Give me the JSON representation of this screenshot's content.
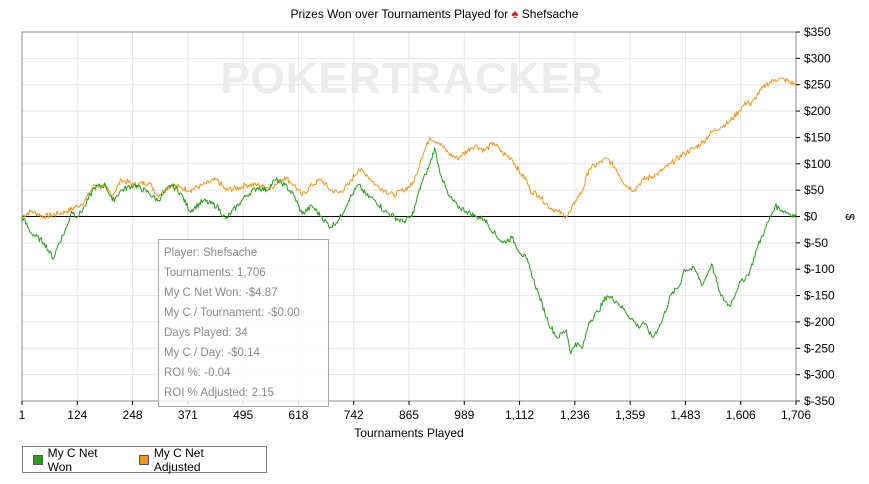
{
  "title": {
    "text": "Prizes Won over Tournaments Played for",
    "player": "Shefsache",
    "icon": "poker-spade-icon"
  },
  "watermark": "POKERTRACKER",
  "colors": {
    "net_won": "#2a9d1f",
    "net_adjusted": "#f0961e",
    "zero_line": "#000000",
    "grid": "#e6e6e6"
  },
  "chart_data": {
    "type": "line",
    "title": "Prizes Won over Tournaments Played for Shefsache",
    "xlabel": "Tournaments Played",
    "ylabel": "$",
    "x_tick_labels": [
      "1",
      "124",
      "248",
      "371",
      "495",
      "618",
      "742",
      "865",
      "989",
      "1,112",
      "1,236",
      "1,359",
      "1,483",
      "1,606",
      "1,706"
    ],
    "y_tick_labels": [
      "$350",
      "$300",
      "$250",
      "$200",
      "$150",
      "$100",
      "$50",
      "$0",
      "$-50",
      "$-100",
      "$-150",
      "$-200",
      "$-250",
      "$-300",
      "$-350"
    ],
    "xlim": [
      1,
      1706
    ],
    "ylim": [
      -350,
      350
    ],
    "grid": true,
    "legend_position": "bottom-left",
    "series": [
      {
        "name": "My C Net Won",
        "color": "#2a9d1f",
        "x": [
          1,
          20,
          50,
          70,
          80,
          100,
          110,
          124,
          140,
          160,
          185,
          200,
          220,
          248,
          280,
          300,
          330,
          350,
          371,
          400,
          430,
          450,
          480,
          495,
          520,
          540,
          560,
          580,
          600,
          618,
          640,
          660,
          680,
          700,
          720,
          742,
          760,
          780,
          800,
          820,
          840,
          860,
          870,
          880,
          890,
          900,
          910,
          920,
          940,
          960,
          980,
          1000,
          1020,
          1040,
          1060,
          1080,
          1100,
          1112,
          1120,
          1140,
          1160,
          1180,
          1200,
          1210,
          1220,
          1236,
          1250,
          1270,
          1290,
          1310,
          1330,
          1350,
          1359,
          1370,
          1390,
          1410,
          1430,
          1450,
          1460,
          1483,
          1500,
          1520,
          1540,
          1560,
          1580,
          1600,
          1606,
          1620,
          1640,
          1660,
          1680,
          1706
        ],
        "y": [
          0,
          -30,
          -50,
          -80,
          -55,
          -20,
          10,
          0,
          20,
          55,
          60,
          30,
          50,
          60,
          45,
          30,
          60,
          45,
          10,
          30,
          20,
          -5,
          25,
          40,
          55,
          50,
          70,
          60,
          40,
          5,
          20,
          0,
          -20,
          -5,
          30,
          60,
          40,
          30,
          10,
          0,
          -10,
          0,
          30,
          60,
          80,
          100,
          130,
          90,
          40,
          20,
          10,
          0,
          -5,
          -30,
          -50,
          -40,
          -70,
          -80,
          -100,
          -150,
          -200,
          -230,
          -215,
          -260,
          -240,
          -250,
          -200,
          -180,
          -150,
          -160,
          -180,
          -200,
          -210,
          -200,
          -230,
          -200,
          -150,
          -130,
          -100,
          -100,
          -130,
          -90,
          -150,
          -170,
          -130,
          -110,
          -100,
          -60,
          -20,
          20,
          10,
          0
        ]
      },
      {
        "name": "My C Net Adjusted",
        "color": "#f0961e",
        "x": [
          1,
          20,
          50,
          80,
          100,
          124,
          140,
          160,
          185,
          200,
          220,
          248,
          280,
          300,
          330,
          350,
          371,
          400,
          430,
          450,
          480,
          495,
          520,
          540,
          560,
          580,
          600,
          618,
          640,
          660,
          680,
          700,
          720,
          742,
          760,
          780,
          800,
          820,
          840,
          860,
          870,
          880,
          900,
          920,
          940,
          960,
          989,
          1000,
          1020,
          1040,
          1060,
          1080,
          1100,
          1112,
          1120,
          1140,
          1160,
          1180,
          1200,
          1210,
          1220,
          1236,
          1250,
          1270,
          1290,
          1310,
          1330,
          1350,
          1359,
          1370,
          1400,
          1430,
          1460,
          1483,
          1500,
          1520,
          1540,
          1560,
          1580,
          1600,
          1606,
          1620,
          1640,
          1660,
          1680,
          1706
        ],
        "y": [
          0,
          10,
          0,
          5,
          10,
          20,
          30,
          60,
          55,
          40,
          70,
          60,
          65,
          40,
          60,
          55,
          50,
          60,
          70,
          50,
          55,
          60,
          60,
          55,
          60,
          75,
          60,
          40,
          60,
          70,
          50,
          45,
          60,
          90,
          80,
          60,
          50,
          40,
          50,
          60,
          80,
          110,
          150,
          140,
          120,
          110,
          130,
          135,
          125,
          140,
          120,
          110,
          80,
          70,
          50,
          40,
          20,
          10,
          0,
          10,
          30,
          50,
          90,
          100,
          110,
          90,
          60,
          50,
          60,
          70,
          80,
          100,
          120,
          130,
          140,
          160,
          170,
          180,
          200,
          220,
          210,
          230,
          250,
          260,
          260,
          250
        ]
      }
    ]
  },
  "tooltip": {
    "lines": [
      "Player: Shefsache",
      "Tournaments: 1,706",
      "My C Net Won: -$4.87",
      "My C / Tournament: -$0.00",
      "Days Played: 34",
      "My C / Day: -$0.14",
      "ROI %: -0.04",
      "ROI % Adjusted: 2.15"
    ]
  },
  "legend": {
    "items": [
      {
        "label": "My C Net Won",
        "color": "#2a9d1f"
      },
      {
        "label": "My C Net Adjusted",
        "color": "#f0961e"
      }
    ]
  }
}
